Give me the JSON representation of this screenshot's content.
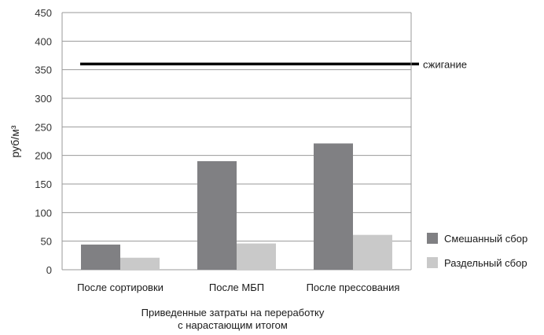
{
  "chart_data": {
    "type": "bar",
    "ylabel": "руб/м³",
    "ylim": [
      0,
      450
    ],
    "yticks": [
      0,
      50,
      100,
      150,
      200,
      250,
      300,
      350,
      400,
      450
    ],
    "grid": true,
    "legend_position": "bottom-right",
    "categories": [
      "После сортировки",
      "После МБП",
      "После прессования"
    ],
    "series": [
      {
        "name": "Смешанный сбор",
        "color": "#808083",
        "values": [
          44,
          190,
          221
        ]
      },
      {
        "name": "Раздельный сбор",
        "color": "#c9c9c9",
        "values": [
          21,
          46,
          61
        ]
      }
    ],
    "reference_line": {
      "label": "сжигание",
      "value": 360,
      "color": "#000000"
    },
    "caption": [
      "Приведенные затраты на переработку",
      "с нарастающим итогом"
    ]
  }
}
